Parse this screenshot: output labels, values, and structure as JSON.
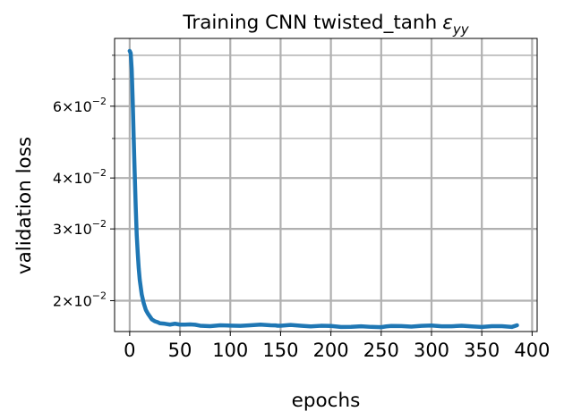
{
  "chart_data": {
    "type": "line",
    "title": "Training CNN twisted_tanh",
    "title_symbol": "ε",
    "title_symbol_subscript": "yy",
    "xlabel": "epochs",
    "ylabel": "validation loss",
    "xlim": [
      -15,
      405
    ],
    "ylim": [
      0.0168,
      0.088
    ],
    "yscale": "log",
    "grid": true,
    "x_ticks": [
      {
        "value": 0,
        "label": "0"
      },
      {
        "value": 50,
        "label": "50"
      },
      {
        "value": 100,
        "label": "100"
      },
      {
        "value": 150,
        "label": "150"
      },
      {
        "value": 200,
        "label": "200"
      },
      {
        "value": 250,
        "label": "250"
      },
      {
        "value": 300,
        "label": "300"
      },
      {
        "value": 350,
        "label": "350"
      },
      {
        "value": 400,
        "label": "400"
      }
    ],
    "y_major_ticks": [
      {
        "value": 0.02,
        "mantissa": "2",
        "base": "10",
        "exponent": "−2"
      },
      {
        "value": 0.03,
        "mantissa": "3",
        "base": "10",
        "exponent": "−2"
      },
      {
        "value": 0.04,
        "mantissa": "4",
        "base": "10",
        "exponent": "−2"
      },
      {
        "value": 0.06,
        "mantissa": "6",
        "base": "10",
        "exponent": "−2"
      }
    ],
    "y_minor_ticks": [
      0.05,
      0.07,
      0.08
    ],
    "series": [
      {
        "color": "#1f77b4",
        "x": [
          0,
          1,
          2,
          3,
          4,
          5,
          6,
          7,
          8,
          9,
          10,
          12,
          14,
          16,
          18,
          20,
          22,
          25,
          28,
          30,
          35,
          40,
          45,
          50,
          55,
          60,
          65,
          70,
          80,
          90,
          100,
          110,
          120,
          130,
          140,
          145,
          147,
          150,
          160,
          170,
          180,
          190,
          200,
          210,
          220,
          230,
          240,
          250,
          255,
          260,
          270,
          280,
          290,
          300,
          310,
          320,
          330,
          340,
          350,
          360,
          370,
          380,
          385
        ],
        "values": [
          0.082,
          0.081,
          0.074,
          0.062,
          0.05,
          0.041,
          0.034,
          0.029,
          0.0262,
          0.024,
          0.0225,
          0.0207,
          0.0197,
          0.019,
          0.0186,
          0.0183,
          0.018,
          0.0178,
          0.0177,
          0.0176,
          0.01755,
          0.01752,
          0.0175,
          0.0175,
          0.01748,
          0.01747,
          0.01745,
          0.01742,
          0.0174,
          0.0174,
          0.01738,
          0.0174,
          0.01738,
          0.0174,
          0.0174,
          0.01738,
          0.01745,
          0.01735,
          0.01735,
          0.01733,
          0.01733,
          0.01733,
          0.01732,
          0.01732,
          0.0173,
          0.0173,
          0.0173,
          0.01728,
          0.01728,
          0.0173,
          0.0173,
          0.0173,
          0.0173,
          0.0173,
          0.0173,
          0.0173,
          0.0173,
          0.0173,
          0.0173,
          0.01732,
          0.01732,
          0.01733,
          0.01732
        ]
      }
    ]
  }
}
